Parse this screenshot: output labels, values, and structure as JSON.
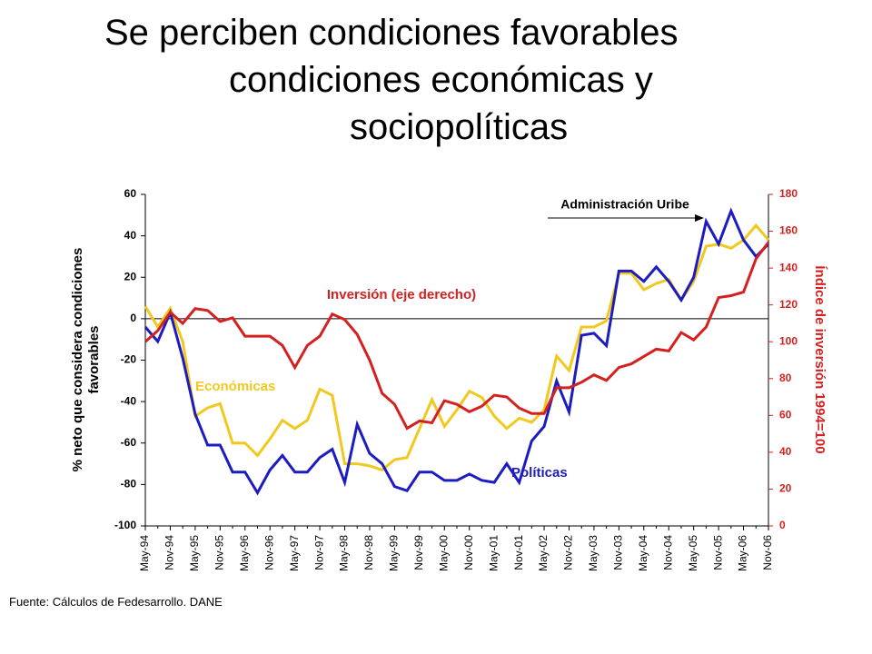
{
  "chart_data": {
    "type": "line",
    "title": [
      "Se perciben condiciones favorables",
      "condiciones económicas y",
      "sociopolíticas"
    ],
    "ylabel": "% neto que considera condiciones favorables",
    "y2label": "Índice de inversión 1994=100",
    "source": "Fuente: Cálculos de Fedesarrollo. DANE",
    "annotations": [
      "Administración Uribe",
      "Inversión (eje derecho)",
      "Económicas",
      "Políticas"
    ],
    "categories": [
      "May-94",
      null,
      "Nov-94",
      null,
      "May-95",
      null,
      "Nov-95",
      null,
      "May-96",
      null,
      "Nov-96",
      null,
      "May-97",
      null,
      "Nov-97",
      null,
      "May-98",
      null,
      "Nov-98",
      null,
      "May-99",
      null,
      "Nov-99",
      null,
      "May-00",
      null,
      "Nov-00",
      null,
      "May-01",
      null,
      "Nov-01",
      null,
      "May-02",
      null,
      "Nov-02",
      null,
      "May-03",
      null,
      "Nov-03",
      null,
      "May-04",
      null,
      "Nov-04",
      null,
      "May-05",
      null,
      "Nov-05",
      null,
      "May-06",
      null,
      "Nov-06"
    ],
    "series": [
      {
        "name": "Económicas",
        "color": "#f2c81e",
        "values": [
          6,
          -4,
          5,
          -11,
          -47,
          -43,
          -41,
          -60,
          -60,
          -66,
          -58,
          -49,
          -53,
          -49,
          -34,
          -37,
          -70,
          -70,
          -71,
          -73,
          -68,
          -67,
          -53,
          -39,
          -52,
          -44,
          -35,
          -38,
          -47,
          -53,
          -48,
          -50,
          -44,
          -18,
          -25,
          -4,
          -4,
          -1,
          22,
          22,
          14,
          17,
          19,
          9,
          18,
          35,
          36,
          34,
          38,
          45,
          38
        ]
      },
      {
        "name": "Políticas",
        "color": "#1c1cc0",
        "values": [
          -4,
          -11,
          3,
          -19,
          -46,
          -61,
          -61,
          -74,
          -74,
          -84,
          -73,
          -66,
          -74,
          -74,
          -67,
          -63,
          -79,
          -51,
          -65,
          -70,
          -81,
          -83,
          -74,
          -74,
          -78,
          -78,
          -75,
          -78,
          -79,
          -70,
          -79,
          -59,
          -52,
          -30,
          -45,
          -8,
          -7,
          -13,
          23,
          23,
          18,
          25,
          18,
          9,
          20,
          47,
          36,
          52,
          38,
          30,
          36
        ]
      },
      {
        "name": "Inversión (eje derecho)",
        "color": "#d42020",
        "axis": "y2",
        "values": [
          100,
          106,
          116,
          110,
          118,
          117,
          111,
          113,
          103,
          103,
          103,
          98,
          86,
          98,
          103,
          115,
          112,
          104,
          90,
          72,
          66,
          53,
          57,
          56,
          68,
          66,
          62,
          65,
          71,
          70,
          64,
          61,
          61,
          75,
          75,
          78,
          82,
          79,
          86,
          88,
          92,
          96,
          95,
          105,
          101,
          108,
          124,
          125,
          127,
          145,
          154
        ]
      }
    ],
    "ylim": [
      -100,
      60
    ],
    "yticks": [
      -100,
      -80,
      -60,
      -40,
      -20,
      0,
      20,
      40,
      60
    ],
    "y2lim": [
      0,
      180
    ],
    "y2ticks": [
      0,
      20,
      40,
      60,
      80,
      100,
      120,
      140,
      160,
      180
    ]
  }
}
